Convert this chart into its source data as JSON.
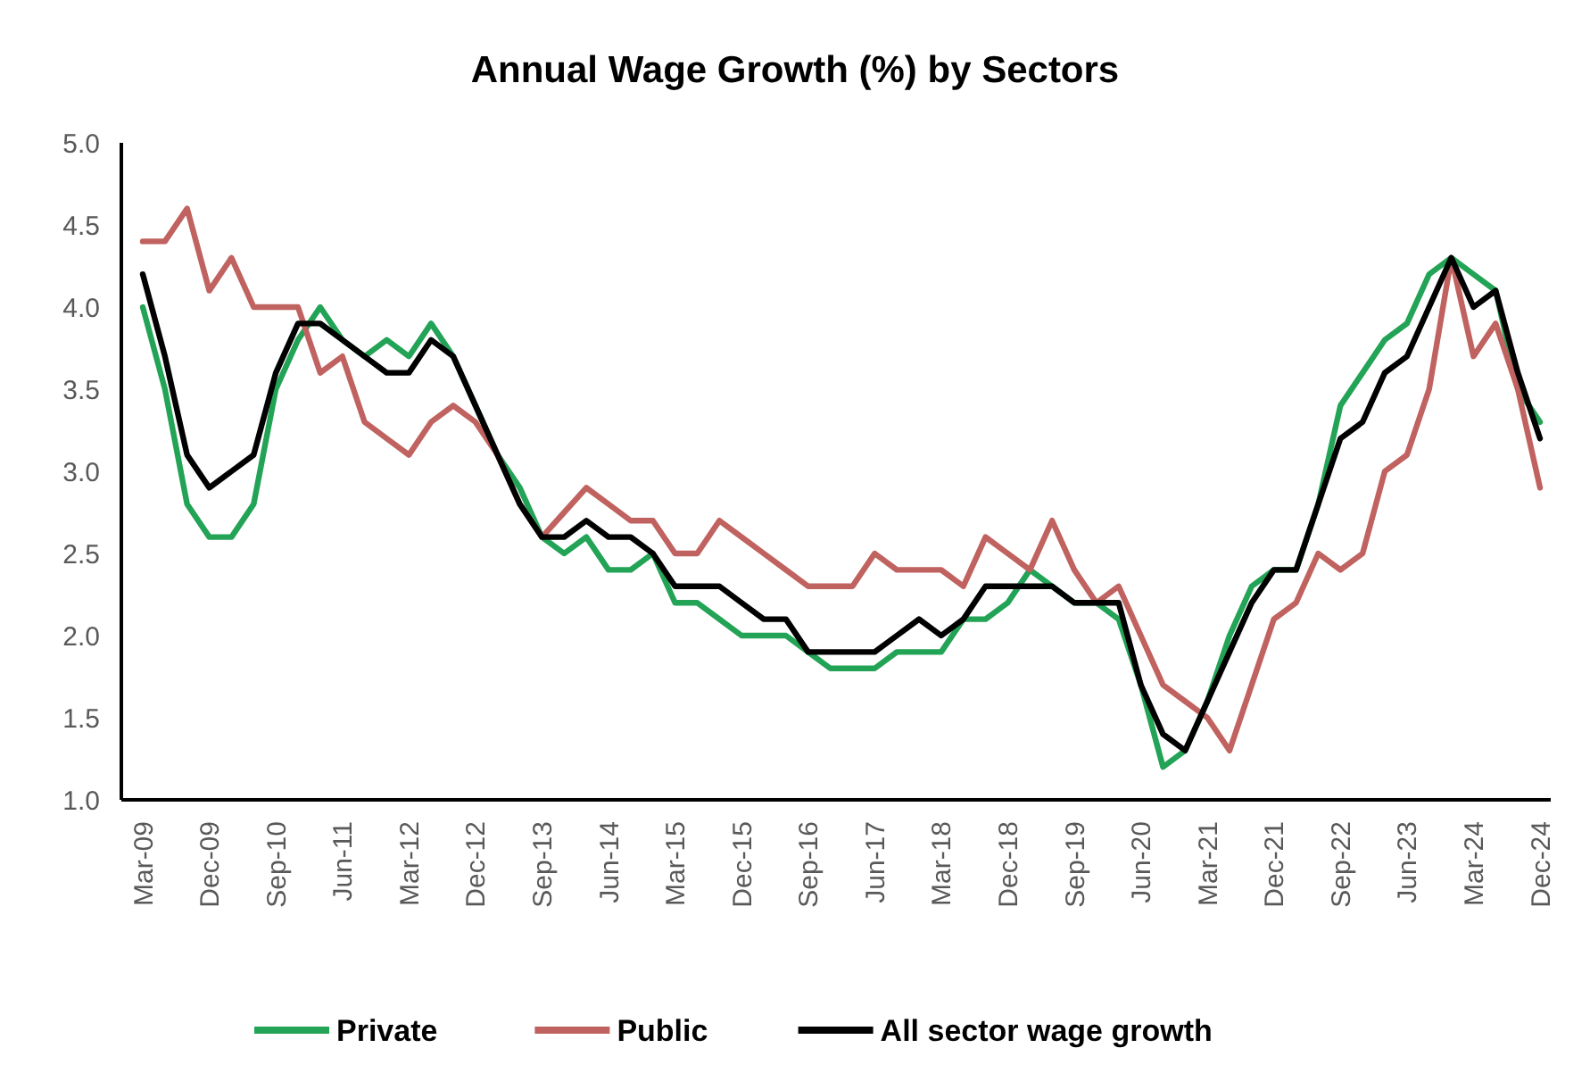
{
  "chart_data": {
    "type": "line",
    "title": "Annual Wage Growth (%) by Sectors",
    "categories": [
      "Mar-09",
      null,
      null,
      "Dec-09",
      null,
      null,
      "Sep-10",
      null,
      null,
      "Jun-11",
      null,
      null,
      "Mar-12",
      null,
      null,
      "Dec-12",
      null,
      null,
      "Sep-13",
      null,
      null,
      "Jun-14",
      null,
      null,
      "Mar-15",
      null,
      null,
      "Dec-15",
      null,
      null,
      "Sep-16",
      null,
      null,
      "Jun-17",
      null,
      null,
      "Mar-18",
      null,
      null,
      "Dec-18",
      null,
      null,
      "Sep-19",
      null,
      null,
      "Jun-20",
      null,
      null,
      "Mar-21",
      null,
      null,
      "Dec-21",
      null,
      null,
      "Sep-22",
      null,
      null,
      "Jun-23",
      null,
      null,
      "Mar-24",
      null,
      null,
      "Dec-24"
    ],
    "series": [
      {
        "name": "Private",
        "color": "#22a356",
        "values": [
          4.0,
          3.5,
          2.8,
          2.6,
          2.6,
          2.8,
          3.5,
          3.8,
          4.0,
          3.8,
          3.7,
          3.8,
          3.7,
          3.9,
          3.7,
          3.4,
          3.1,
          2.9,
          2.6,
          2.5,
          2.6,
          2.4,
          2.4,
          2.5,
          2.2,
          2.2,
          2.1,
          2.0,
          2.0,
          2.0,
          1.9,
          1.8,
          1.8,
          1.8,
          1.9,
          1.9,
          1.9,
          2.1,
          2.1,
          2.2,
          2.4,
          2.3,
          2.2,
          2.2,
          2.1,
          1.7,
          1.2,
          1.3,
          1.6,
          2.0,
          2.3,
          2.4,
          2.4,
          2.8,
          3.4,
          3.6,
          3.8,
          3.9,
          4.2,
          4.3,
          4.2,
          4.1,
          3.5,
          3.3
        ]
      },
      {
        "name": "Public",
        "color": "#c0625f",
        "values": [
          4.4,
          4.4,
          4.6,
          4.1,
          4.3,
          4.0,
          4.0,
          4.0,
          3.6,
          3.7,
          3.3,
          3.2,
          3.1,
          3.3,
          3.4,
          3.3,
          3.1,
          2.8,
          2.6,
          2.75,
          2.9,
          2.8,
          2.7,
          2.7,
          2.5,
          2.5,
          2.7,
          2.6,
          2.5,
          2.4,
          2.3,
          2.3,
          2.3,
          2.5,
          2.4,
          2.4,
          2.4,
          2.3,
          2.6,
          2.5,
          2.4,
          2.7,
          2.4,
          2.2,
          2.3,
          2.0,
          1.7,
          1.6,
          1.5,
          1.3,
          1.7,
          2.1,
          2.2,
          2.5,
          2.4,
          2.5,
          3.0,
          3.1,
          3.5,
          4.3,
          3.7,
          3.9,
          3.5,
          2.9
        ]
      },
      {
        "name": "All sector wage growth",
        "color": "#000000",
        "values": [
          4.2,
          3.7,
          3.1,
          2.9,
          3.0,
          3.1,
          3.6,
          3.9,
          3.9,
          3.8,
          3.7,
          3.6,
          3.6,
          3.8,
          3.7,
          3.4,
          3.1,
          2.8,
          2.6,
          2.6,
          2.7,
          2.6,
          2.6,
          2.5,
          2.3,
          2.3,
          2.3,
          2.2,
          2.1,
          2.1,
          1.9,
          1.9,
          1.9,
          1.9,
          2.0,
          2.1,
          2.0,
          2.1,
          2.3,
          2.3,
          2.3,
          2.3,
          2.2,
          2.2,
          2.2,
          1.7,
          1.4,
          1.3,
          1.6,
          1.9,
          2.2,
          2.4,
          2.4,
          2.8,
          3.2,
          3.3,
          3.6,
          3.7,
          4.0,
          4.3,
          4.0,
          4.1,
          3.6,
          3.2
        ]
      }
    ],
    "ylim": [
      1,
      5
    ],
    "yticks": [
      {
        "value": 1,
        "label": "1.0"
      },
      {
        "value": 1.5,
        "label": "1.5"
      },
      {
        "value": 2,
        "label": "2.0"
      },
      {
        "value": 2.5,
        "label": "2.5"
      },
      {
        "value": 3,
        "label": "3.0"
      },
      {
        "value": 3.5,
        "label": "3.5"
      },
      {
        "value": 4,
        "label": "4.0"
      },
      {
        "value": 4.5,
        "label": "4.5"
      },
      {
        "value": 5,
        "label": "5.0"
      }
    ],
    "grid": false,
    "legend": "bottom",
    "line_style": "solid"
  }
}
